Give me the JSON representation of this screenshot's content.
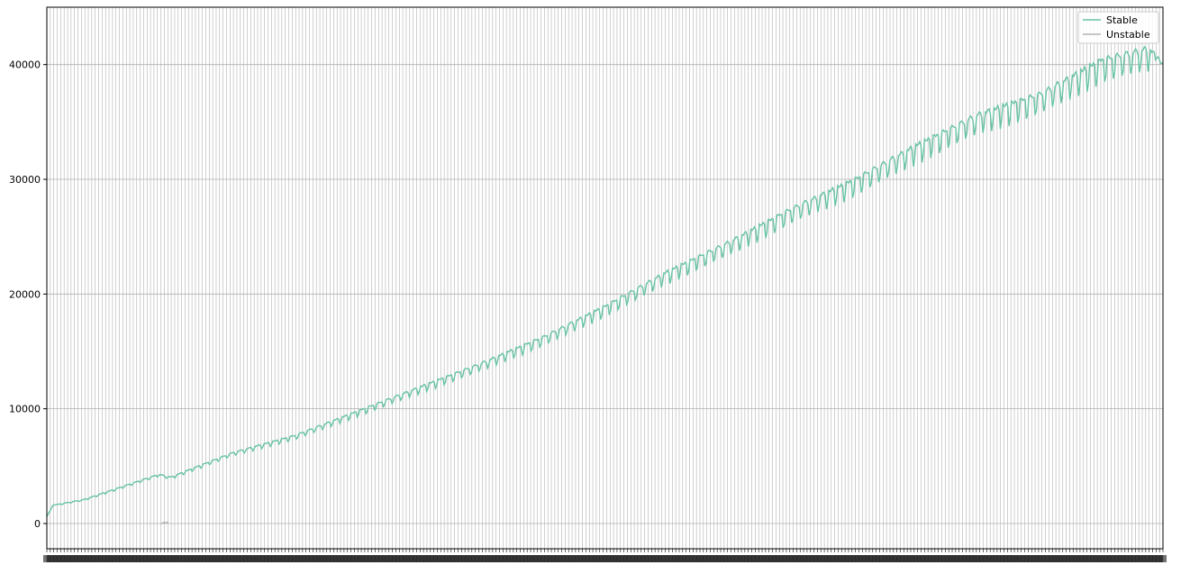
{
  "chart_data": {
    "type": "line",
    "title": "",
    "xlabel": "",
    "ylabel": "",
    "ylim": [
      -2200,
      45000
    ],
    "yticks": [
      0,
      10000,
      20000,
      30000,
      40000
    ],
    "yticks_labels": [
      "0",
      "10000",
      "20000",
      "30000",
      "40000"
    ],
    "grid": true,
    "legend_position": "top-right",
    "x_tick_labels_legible": false,
    "x_point_count": 710,
    "colors": {
      "stable": "#66c2a5",
      "unstable": "#b3b3b3",
      "grid": "#b0b0b0"
    },
    "series": [
      {
        "name": "Stable",
        "color": "#66c2a5",
        "start_value": 600,
        "end_value": 40000,
        "anchors": [
          [
            0,
            600
          ],
          [
            5,
            1600
          ],
          [
            30,
            2100
          ],
          [
            60,
            3200
          ],
          [
            90,
            4300
          ],
          [
            100,
            4050
          ],
          [
            110,
            4500
          ],
          [
            150,
            6200
          ],
          [
            200,
            7700
          ],
          [
            250,
            9800
          ],
          [
            300,
            11900
          ],
          [
            350,
            14000
          ],
          [
            400,
            16300
          ],
          [
            450,
            19000
          ],
          [
            500,
            22000
          ],
          [
            550,
            24600
          ],
          [
            600,
            27500
          ],
          [
            650,
            30000
          ],
          [
            700,
            33000
          ],
          [
            750,
            35700
          ],
          [
            800,
            37500
          ],
          [
            850,
            40500
          ],
          [
            888,
            41500
          ],
          [
            899,
            40000
          ]
        ],
        "weekly_dip_ratio": 0.05,
        "description_of_shape": "steadily increasing with periodic dips"
      },
      {
        "name": "Unstable",
        "color": "#b3b3b3",
        "values_note": "only a short segment near zero is visible",
        "segment": [
          [
            92,
            -50
          ],
          [
            94,
            100
          ],
          [
            96,
            60
          ],
          [
            98,
            150
          ]
        ]
      }
    ],
    "legend": {
      "entries": [
        "Stable",
        "Unstable"
      ]
    }
  }
}
